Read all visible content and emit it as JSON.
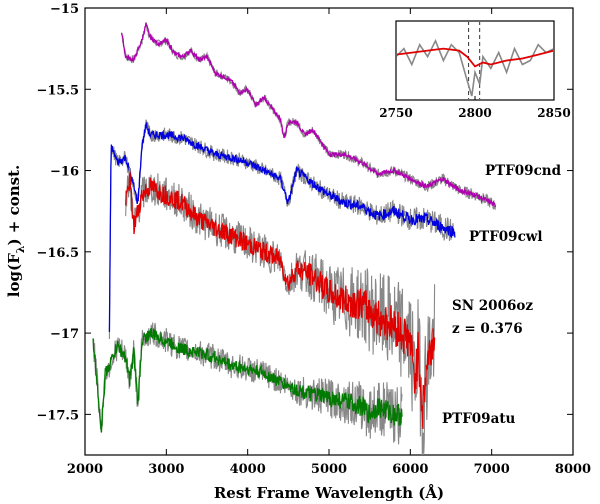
{
  "chart_data": {
    "type": "line",
    "title": "",
    "xlabel": "Rest Frame Wavelength (Å)",
    "ylabel": "log(F",
    "ylabel_sub": "λ",
    "ylabel_tail": ") + const.",
    "xlim": [
      2000,
      8000
    ],
    "ylim": [
      -17.75,
      -15
    ],
    "xticks": [
      2000,
      3000,
      4000,
      5000,
      6000,
      7000,
      8000
    ],
    "yticks": [
      -15,
      -15.5,
      -16,
      -16.5,
      -17,
      -17.5
    ],
    "xtick_labels": [
      "2000",
      "3000",
      "4000",
      "5000",
      "6000",
      "7000",
      "8000"
    ],
    "ytick_labels": [
      "−15",
      "−15.5",
      "−16",
      "−16.5",
      "−17",
      "−17.5"
    ],
    "series": [
      {
        "name": "PTF09cnd",
        "color": "#b000b0",
        "raw_color": "#888888",
        "x": [
          2450,
          2500,
          2600,
          2700,
          2750,
          2800,
          2900,
          3000,
          3100,
          3200,
          3300,
          3400,
          3500,
          3600,
          3700,
          3800,
          3900,
          4000,
          4100,
          4200,
          4300,
          4400,
          4450,
          4500,
          4600,
          4700,
          4800,
          4900,
          5000,
          5200,
          5400,
          5600,
          5800,
          6000,
          6200,
          6400,
          6600,
          6800,
          7000,
          7050
        ],
        "y": [
          -15.15,
          -15.3,
          -15.32,
          -15.2,
          -15.1,
          -15.18,
          -15.22,
          -15.2,
          -15.28,
          -15.3,
          -15.26,
          -15.32,
          -15.3,
          -15.4,
          -15.42,
          -15.45,
          -15.52,
          -15.5,
          -15.6,
          -15.55,
          -15.62,
          -15.68,
          -15.8,
          -15.7,
          -15.7,
          -15.78,
          -15.75,
          -15.82,
          -15.9,
          -15.9,
          -15.95,
          -16.02,
          -16.0,
          -16.05,
          -16.1,
          -16.05,
          -16.12,
          -16.15,
          -16.2,
          -16.22
        ]
      },
      {
        "name": "PTF09cwl",
        "color": "#0000e0",
        "raw_color": "#888888",
        "x": [
          2300,
          2320,
          2400,
          2500,
          2600,
          2650,
          2700,
          2750,
          2800,
          3000,
          3200,
          3400,
          3600,
          3800,
          4000,
          4200,
          4400,
          4500,
          4600,
          4800,
          5000,
          5200,
          5400,
          5600,
          5800,
          6000,
          6200,
          6400,
          6550
        ],
        "y": [
          -17.0,
          -15.85,
          -15.95,
          -15.92,
          -16.1,
          -16.2,
          -15.85,
          -15.72,
          -15.78,
          -15.78,
          -15.8,
          -15.85,
          -15.9,
          -15.92,
          -15.95,
          -16.0,
          -16.05,
          -16.2,
          -16.0,
          -16.08,
          -16.15,
          -16.2,
          -16.22,
          -16.28,
          -16.25,
          -16.3,
          -16.3,
          -16.35,
          -16.38
        ]
      },
      {
        "name": "SN 2006oz",
        "color": "#e00000",
        "raw_color": "#888888",
        "x": [
          2500,
          2550,
          2600,
          2700,
          2800,
          3000,
          3200,
          3400,
          3600,
          3800,
          4000,
          4200,
          4400,
          4500,
          4600,
          4800,
          5000,
          5200,
          5400,
          5600,
          5800,
          5900,
          6000,
          6050,
          6100,
          6150,
          6200,
          6300
        ],
        "y": [
          -16.2,
          -16.05,
          -16.35,
          -16.15,
          -16.1,
          -16.15,
          -16.2,
          -16.3,
          -16.35,
          -16.4,
          -16.45,
          -16.5,
          -16.55,
          -16.7,
          -16.6,
          -16.65,
          -16.75,
          -16.8,
          -16.82,
          -16.9,
          -16.95,
          -17.0,
          -17.05,
          -17.3,
          -17.1,
          -17.5,
          -17.2,
          -17.0
        ]
      },
      {
        "name": "PTF09atu",
        "color": "#007a00",
        "raw_color": "#888888",
        "x": [
          2100,
          2150,
          2200,
          2250,
          2300,
          2400,
          2500,
          2550,
          2600,
          2650,
          2700,
          2800,
          3000,
          3200,
          3400,
          3600,
          3800,
          4000,
          4200,
          4400,
          4600,
          4800,
          5000,
          5200,
          5400,
          5500,
          5600,
          5800,
          5900
        ],
        "y": [
          -17.05,
          -17.3,
          -17.6,
          -17.25,
          -17.2,
          -17.08,
          -17.15,
          -17.3,
          -17.1,
          -17.45,
          -17.05,
          -17.0,
          -17.05,
          -17.1,
          -17.12,
          -17.15,
          -17.2,
          -17.22,
          -17.25,
          -17.3,
          -17.35,
          -17.38,
          -17.4,
          -17.42,
          -17.45,
          -17.5,
          -17.45,
          -17.5,
          -17.5
        ]
      }
    ],
    "annotations": [
      {
        "text": "PTF09cnd"
      },
      {
        "text": "PTF09cwl"
      },
      {
        "text": "SN 2006oz"
      },
      {
        "text": "z = 0.376"
      },
      {
        "text": "PTF09atu"
      }
    ],
    "inset": {
      "xlim": [
        2750,
        2850
      ],
      "xticks": [
        2750,
        2800,
        2850
      ],
      "xtick_labels": [
        "2750",
        "2800",
        "2850"
      ],
      "ylim": [
        -1,
        1
      ],
      "markers": [
        2796,
        2803
      ],
      "raw": {
        "color": "#888888",
        "x": [
          2750,
          2755,
          2760,
          2765,
          2770,
          2775,
          2780,
          2785,
          2790,
          2795,
          2798,
          2800,
          2803,
          2805,
          2810,
          2815,
          2820,
          2825,
          2830,
          2835,
          2840,
          2845,
          2850
        ],
        "y": [
          0.1,
          0.3,
          -0.1,
          0.4,
          0.1,
          0.5,
          0.0,
          0.4,
          0.2,
          -0.5,
          -0.9,
          -0.3,
          -0.6,
          0.1,
          -0.2,
          0.2,
          -0.3,
          0.3,
          -0.1,
          0.0,
          0.4,
          0.2,
          0.3
        ]
      },
      "smooth": {
        "color": "#e00000",
        "x": [
          2750,
          2760,
          2770,
          2780,
          2790,
          2795,
          2800,
          2805,
          2810,
          2820,
          2830,
          2840,
          2850
        ],
        "y": [
          0.15,
          0.2,
          0.25,
          0.3,
          0.25,
          0.1,
          -0.15,
          -0.05,
          -0.1,
          0.0,
          0.05,
          0.15,
          0.25
        ]
      }
    }
  }
}
